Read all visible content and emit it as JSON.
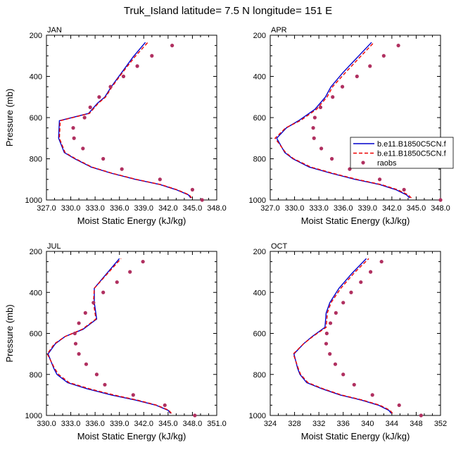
{
  "figure_title": "Truk_Island  latitude= 7.5 N longitude= 151 E",
  "colors": {
    "model1": "#0000cc",
    "model2": "#ee0000",
    "raobs": "#b03060"
  },
  "legend": {
    "entries": [
      {
        "label": "b.e11.B1850C5CN.f",
        "style": "solid",
        "color": "#0000cc"
      },
      {
        "label": "b.e11.B1850C5CN.f",
        "style": "dashed",
        "color": "#ee0000"
      },
      {
        "label": "raobs",
        "style": "markers",
        "color": "#b03060"
      }
    ]
  },
  "chart_data": [
    {
      "type": "line",
      "panel": "JAN",
      "xlabel": "Moist Static Energy (kJ/kg)",
      "ylabel": "Pressure (mb)",
      "xlim": [
        327,
        348
      ],
      "ylim": [
        200,
        1000
      ],
      "y_reversed": true,
      "xticks": [
        "327.0",
        "330.0",
        "333.0",
        "336.0",
        "339.0",
        "342.0",
        "345.0",
        "348.0"
      ],
      "xtick_values": [
        327,
        330,
        333,
        336,
        339,
        342,
        345,
        348
      ],
      "yticks": [
        "200",
        "400",
        "600",
        "800",
        "1000"
      ],
      "ytick_values": [
        200,
        400,
        600,
        800,
        1000
      ],
      "series": [
        {
          "style": "solid",
          "color": "#0000cc",
          "points": [
            [
              344.8,
              990
            ],
            [
              344.5,
              975
            ],
            [
              343.0,
              950
            ],
            [
              341.0,
              925
            ],
            [
              338.0,
              900
            ],
            [
              335.0,
              870
            ],
            [
              332.5,
              840
            ],
            [
              330.5,
              800
            ],
            [
              329.2,
              770
            ],
            [
              328.5,
              700
            ],
            [
              328.6,
              615
            ],
            [
              332.2,
              580
            ],
            [
              333.3,
              530
            ],
            [
              334.2,
              500
            ],
            [
              335.0,
              450
            ],
            [
              336.3,
              380
            ],
            [
              337.7,
              305
            ],
            [
              339.2,
              235
            ]
          ]
        },
        {
          "style": "dashed",
          "color": "#ee0000",
          "points": [
            [
              344.9,
              990
            ],
            [
              344.6,
              975
            ],
            [
              343.1,
              950
            ],
            [
              341.1,
              925
            ],
            [
              338.1,
              900
            ],
            [
              335.1,
              870
            ],
            [
              332.6,
              840
            ],
            [
              330.6,
              800
            ],
            [
              329.3,
              770
            ],
            [
              328.6,
              700
            ],
            [
              328.7,
              615
            ],
            [
              332.3,
              580
            ],
            [
              333.4,
              530
            ],
            [
              334.3,
              500
            ],
            [
              335.1,
              450
            ],
            [
              336.4,
              380
            ],
            [
              337.9,
              305
            ],
            [
              339.5,
              235
            ]
          ]
        },
        {
          "style": "markers",
          "color": "#b03060",
          "points": [
            [
              346.2,
              1000
            ],
            [
              345.0,
              950
            ],
            [
              341.0,
              900
            ],
            [
              336.3,
              850
            ],
            [
              334.0,
              800
            ],
            [
              331.5,
              750
            ],
            [
              330.4,
              700
            ],
            [
              330.3,
              650
            ],
            [
              331.7,
              600
            ],
            [
              332.4,
              550
            ],
            [
              333.5,
              500
            ],
            [
              334.9,
              450
            ],
            [
              336.5,
              400
            ],
            [
              338.2,
              350
            ],
            [
              340.0,
              300
            ],
            [
              342.5,
              250
            ]
          ]
        }
      ]
    },
    {
      "type": "line",
      "panel": "APR",
      "xlabel": "Moist Static Energy (kJ/kg)",
      "ylabel": "",
      "xlim": [
        327,
        348
      ],
      "ylim": [
        200,
        1000
      ],
      "y_reversed": true,
      "xticks": [
        "327.0",
        "330.0",
        "333.0",
        "336.0",
        "339.0",
        "342.0",
        "345.0",
        "348.0"
      ],
      "xtick_values": [
        327,
        330,
        333,
        336,
        339,
        342,
        345,
        348
      ],
      "yticks": [
        "200",
        "400",
        "600",
        "800",
        "1000"
      ],
      "ytick_values": [
        200,
        400,
        600,
        800,
        1000
      ],
      "series": [
        {
          "style": "solid",
          "color": "#0000cc",
          "points": [
            [
              344.2,
              990
            ],
            [
              343.8,
              975
            ],
            [
              342.5,
              950
            ],
            [
              340.5,
              925
            ],
            [
              337.5,
              900
            ],
            [
              334.5,
              870
            ],
            [
              331.8,
              840
            ],
            [
              329.8,
              800
            ],
            [
              328.8,
              770
            ],
            [
              327.8,
              700
            ],
            [
              329.0,
              650
            ],
            [
              330.5,
              615
            ],
            [
              332.5,
              560
            ],
            [
              333.8,
              500
            ],
            [
              334.5,
              450
            ],
            [
              336.0,
              380
            ],
            [
              337.8,
              305
            ],
            [
              339.5,
              235
            ]
          ]
        },
        {
          "style": "dashed",
          "color": "#ee0000",
          "points": [
            [
              344.4,
              990
            ],
            [
              344.0,
              975
            ],
            [
              342.7,
              950
            ],
            [
              340.7,
              925
            ],
            [
              337.7,
              900
            ],
            [
              334.7,
              870
            ],
            [
              332.0,
              840
            ],
            [
              329.9,
              800
            ],
            [
              328.9,
              770
            ],
            [
              327.6,
              700
            ],
            [
              328.9,
              650
            ],
            [
              330.7,
              615
            ],
            [
              332.7,
              560
            ],
            [
              334.0,
              500
            ],
            [
              334.7,
              450
            ],
            [
              336.3,
              380
            ],
            [
              338.1,
              305
            ],
            [
              339.8,
              235
            ]
          ]
        },
        {
          "style": "markers",
          "color": "#b03060",
          "points": [
            [
              348.0,
              1000
            ],
            [
              343.5,
              950
            ],
            [
              340.5,
              900
            ],
            [
              336.8,
              850
            ],
            [
              334.6,
              800
            ],
            [
              333.3,
              750
            ],
            [
              332.4,
              700
            ],
            [
              332.3,
              650
            ],
            [
              332.5,
              600
            ],
            [
              333.2,
              550
            ],
            [
              334.7,
              500
            ],
            [
              335.9,
              450
            ],
            [
              337.7,
              400
            ],
            [
              339.3,
              350
            ],
            [
              341.0,
              300
            ],
            [
              342.8,
              250
            ]
          ]
        }
      ]
    },
    {
      "type": "line",
      "panel": "JUL",
      "xlabel": "Moist Static Energy (kJ/kg)",
      "ylabel": "Pressure (mb)",
      "xlim": [
        330,
        351
      ],
      "ylim": [
        200,
        1000
      ],
      "y_reversed": true,
      "xticks": [
        "330.0",
        "333.0",
        "336.0",
        "339.0",
        "342.0",
        "345.0",
        "348.0",
        "351.0"
      ],
      "xtick_values": [
        330,
        333,
        336,
        339,
        342,
        345,
        348,
        351
      ],
      "yticks": [
        "200",
        "400",
        "600",
        "800",
        "1000"
      ],
      "ytick_values": [
        200,
        400,
        600,
        800,
        1000
      ],
      "series": [
        {
          "style": "solid",
          "color": "#0000cc",
          "points": [
            [
              345.3,
              990
            ],
            [
              345.0,
              975
            ],
            [
              343.5,
              950
            ],
            [
              341.0,
              925
            ],
            [
              338.0,
              900
            ],
            [
              335.0,
              870
            ],
            [
              332.6,
              840
            ],
            [
              331.3,
              800
            ],
            [
              330.9,
              770
            ],
            [
              330.2,
              700
            ],
            [
              331.1,
              650
            ],
            [
              332.3,
              615
            ],
            [
              334.5,
              580
            ],
            [
              336.2,
              530
            ],
            [
              335.9,
              450
            ],
            [
              335.9,
              380
            ],
            [
              337.5,
              305
            ],
            [
              339.0,
              235
            ]
          ]
        },
        {
          "style": "dashed",
          "color": "#ee0000",
          "points": [
            [
              345.4,
              990
            ],
            [
              345.1,
              975
            ],
            [
              343.6,
              950
            ],
            [
              341.2,
              925
            ],
            [
              338.3,
              900
            ],
            [
              335.3,
              870
            ],
            [
              332.8,
              840
            ],
            [
              331.5,
              800
            ],
            [
              331.0,
              770
            ],
            [
              330.1,
              700
            ],
            [
              331.0,
              650
            ],
            [
              332.3,
              615
            ],
            [
              334.4,
              580
            ],
            [
              336.1,
              530
            ],
            [
              335.8,
              450
            ],
            [
              335.9,
              380
            ],
            [
              337.6,
              305
            ],
            [
              339.2,
              235
            ]
          ]
        },
        {
          "style": "markers",
          "color": "#b03060",
          "points": [
            [
              348.3,
              1000
            ],
            [
              344.6,
              950
            ],
            [
              340.7,
              900
            ],
            [
              337.2,
              850
            ],
            [
              336.2,
              800
            ],
            [
              334.9,
              750
            ],
            [
              334.0,
              700
            ],
            [
              333.6,
              650
            ],
            [
              333.5,
              600
            ],
            [
              334.0,
              550
            ],
            [
              334.8,
              500
            ],
            [
              335.8,
              450
            ],
            [
              337.0,
              400
            ],
            [
              338.7,
              350
            ],
            [
              340.3,
              300
            ],
            [
              341.9,
              250
            ]
          ]
        }
      ]
    },
    {
      "type": "line",
      "panel": "OCT",
      "xlabel": "Moist Static Energy (kJ/kg)",
      "ylabel": "",
      "xlim": [
        324,
        352
      ],
      "ylim": [
        200,
        1000
      ],
      "y_reversed": true,
      "xticks": [
        "324",
        "328",
        "332",
        "336",
        "340",
        "344",
        "348",
        "352"
      ],
      "xtick_values": [
        324,
        328,
        332,
        336,
        340,
        344,
        348,
        352
      ],
      "yticks": [
        "200",
        "400",
        "600",
        "800",
        "1000"
      ],
      "ytick_values": [
        200,
        400,
        600,
        800,
        1000
      ],
      "series": [
        {
          "style": "solid",
          "color": "#0000cc",
          "points": [
            [
              343.9,
              990
            ],
            [
              343.5,
              975
            ],
            [
              341.8,
              950
            ],
            [
              339.0,
              925
            ],
            [
              335.5,
              900
            ],
            [
              332.5,
              870
            ],
            [
              330.0,
              840
            ],
            [
              328.9,
              800
            ],
            [
              328.5,
              770
            ],
            [
              327.9,
              700
            ],
            [
              329.5,
              650
            ],
            [
              330.9,
              615
            ],
            [
              333.0,
              570
            ],
            [
              333.2,
              500
            ],
            [
              333.8,
              450
            ],
            [
              335.3,
              380
            ],
            [
              337.5,
              305
            ],
            [
              339.8,
              235
            ]
          ]
        },
        {
          "style": "dashed",
          "color": "#ee0000",
          "points": [
            [
              344.1,
              990
            ],
            [
              343.7,
              975
            ],
            [
              342.0,
              950
            ],
            [
              339.2,
              925
            ],
            [
              335.7,
              900
            ],
            [
              332.7,
              870
            ],
            [
              330.2,
              840
            ],
            [
              329.0,
              800
            ],
            [
              328.6,
              770
            ],
            [
              327.8,
              700
            ],
            [
              329.5,
              650
            ],
            [
              331.0,
              615
            ],
            [
              333.2,
              570
            ],
            [
              333.4,
              500
            ],
            [
              334.0,
              450
            ],
            [
              335.6,
              380
            ],
            [
              337.8,
              305
            ],
            [
              340.2,
              235
            ]
          ]
        },
        {
          "style": "markers",
          "color": "#b03060",
          "points": [
            [
              348.8,
              1000
            ],
            [
              345.2,
              950
            ],
            [
              340.8,
              900
            ],
            [
              337.8,
              850
            ],
            [
              336.0,
              800
            ],
            [
              334.7,
              750
            ],
            [
              333.8,
              700
            ],
            [
              333.2,
              650
            ],
            [
              333.3,
              600
            ],
            [
              333.9,
              550
            ],
            [
              334.8,
              500
            ],
            [
              336.0,
              450
            ],
            [
              337.3,
              400
            ],
            [
              338.9,
              350
            ],
            [
              340.5,
              300
            ],
            [
              342.3,
              250
            ]
          ]
        }
      ]
    }
  ]
}
